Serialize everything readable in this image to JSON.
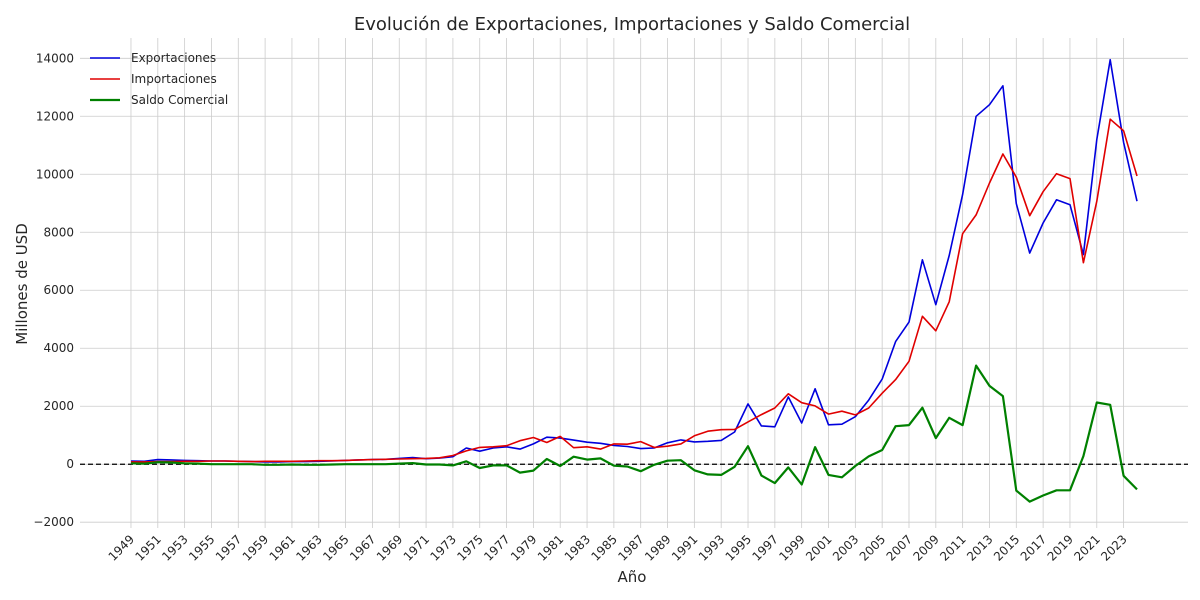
{
  "chart_data": {
    "type": "line",
    "title": "Evolución de Exportaciones, Importaciones y Saldo Comercial",
    "xlabel": "Año",
    "ylabel": "Millones de USD",
    "xlim": [
      1949,
      2024
    ],
    "ylim": [
      -2000,
      14700
    ],
    "yticks": [
      -2000,
      0,
      2000,
      4000,
      6000,
      8000,
      10000,
      12000,
      14000
    ],
    "ytick_labels": [
      "−2000",
      "0",
      "2000",
      "4000",
      "6000",
      "8000",
      "10000",
      "12000",
      "14000"
    ],
    "xticks": [
      1949,
      1951,
      1953,
      1955,
      1957,
      1959,
      1961,
      1963,
      1965,
      1967,
      1969,
      1971,
      1973,
      1975,
      1977,
      1979,
      1981,
      1983,
      1985,
      1987,
      1989,
      1991,
      1993,
      1995,
      1997,
      1999,
      2001,
      2003,
      2005,
      2007,
      2009,
      2011,
      2013,
      2015,
      2017,
      2019,
      2021,
      2023
    ],
    "grid": true,
    "legend_position": "top-left",
    "reference_line": 0,
    "x": [
      1949,
      1950,
      1951,
      1952,
      1953,
      1954,
      1955,
      1956,
      1957,
      1958,
      1959,
      1960,
      1961,
      1962,
      1963,
      1964,
      1965,
      1966,
      1967,
      1968,
      1969,
      1970,
      1971,
      1972,
      1973,
      1974,
      1975,
      1976,
      1977,
      1978,
      1979,
      1980,
      1981,
      1982,
      1983,
      1984,
      1985,
      1986,
      1987,
      1988,
      1989,
      1990,
      1991,
      1992,
      1993,
      1994,
      1995,
      1996,
      1997,
      1998,
      1999,
      2000,
      2001,
      2002,
      2003,
      2004,
      2005,
      2006,
      2007,
      2008,
      2009,
      2010,
      2011,
      2012,
      2013,
      2014,
      2015,
      2016,
      2017,
      2018,
      2019,
      2020,
      2021,
      2022,
      2023,
      2024
    ],
    "series": [
      {
        "name": "Exportaciones",
        "color": "#0000dd",
        "values": [
          110,
          100,
          160,
          150,
          130,
          120,
          110,
          110,
          100,
          90,
          80,
          80,
          90,
          90,
          100,
          110,
          130,
          150,
          160,
          170,
          200,
          230,
          190,
          210,
          260,
          560,
          450,
          560,
          600,
          520,
          700,
          930,
          900,
          830,
          760,
          720,
          650,
          610,
          540,
          560,
          740,
          840,
          770,
          790,
          820,
          1110,
          2080,
          1320,
          1290,
          2320,
          1420,
          2600,
          1360,
          1380,
          1640,
          2210,
          2940,
          4230,
          4900,
          7050,
          5500,
          7200,
          9300,
          12000,
          12400,
          13050,
          8990,
          7280,
          8320,
          9120,
          8950,
          7230,
          11200,
          13950,
          11100,
          9070
        ]
      },
      {
        "name": "Importaciones",
        "color": "#e00000",
        "values": [
          80,
          80,
          90,
          90,
          100,
          100,
          110,
          110,
          100,
          90,
          100,
          100,
          100,
          110,
          120,
          120,
          130,
          150,
          160,
          170,
          180,
          190,
          200,
          220,
          300,
          460,
          580,
          600,
          640,
          810,
          920,
          750,
          960,
          570,
          600,
          520,
          700,
          690,
          780,
          580,
          620,
          700,
          980,
          1140,
          1190,
          1200,
          1460,
          1710,
          1940,
          2430,
          2120,
          2010,
          1730,
          1830,
          1700,
          1940,
          2450,
          2920,
          3550,
          5100,
          4600,
          5600,
          7950,
          8600,
          9700,
          10700,
          9900,
          8570,
          9400,
          10020,
          9850,
          6950,
          9070,
          11900,
          11500,
          9940
        ]
      },
      {
        "name": "Saldo Comercial",
        "color": "#008000",
        "values": [
          30,
          20,
          70,
          60,
          30,
          20,
          0,
          0,
          0,
          0,
          -20,
          -20,
          -10,
          -20,
          -20,
          -10,
          0,
          0,
          0,
          0,
          20,
          40,
          -10,
          -10,
          -40,
          100,
          -130,
          -40,
          -40,
          -290,
          -220,
          180,
          -60,
          260,
          160,
          200,
          -50,
          -80,
          -240,
          -20,
          120,
          140,
          -210,
          -350,
          -370,
          -90,
          620,
          -390,
          -650,
          -110,
          -700,
          590,
          -370,
          -450,
          -60,
          270,
          490,
          1310,
          1350,
          1950,
          900,
          1600,
          1350,
          3400,
          2700,
          2350,
          -910,
          -1290,
          -1080,
          -900,
          -900,
          280,
          2130,
          2050,
          -400,
          -870
        ]
      }
    ]
  }
}
